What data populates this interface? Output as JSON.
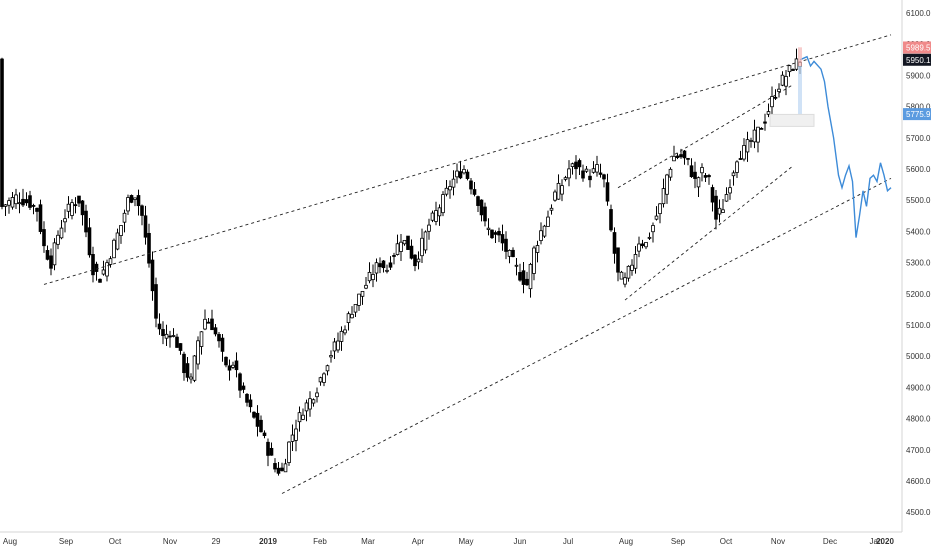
{
  "chart_data": {
    "type": "ohlc",
    "title": "",
    "xlabel": "",
    "ylabel": "",
    "ylim": [
      4450,
      6150
    ],
    "grid": false,
    "y_ticks": [
      "6100.0",
      "6000.0",
      "5900.0",
      "5800.0",
      "5700.0",
      "5600.0",
      "5500.0",
      "5400.0",
      "5300.0",
      "5200.0",
      "5100.0",
      "5000.0",
      "4900.0",
      "4800.0",
      "4700.0",
      "4600.0",
      "4500.0"
    ],
    "x_ticks": [
      "Aug",
      "Sep",
      "Oct",
      "Nov",
      "29",
      "2019",
      "Feb",
      "Mar",
      "Apr",
      "May",
      "Jun",
      "Jul",
      "Aug",
      "Sep",
      "Oct",
      "Nov",
      "Dec",
      "Jan",
      "2020"
    ],
    "price_tags": [
      {
        "label": "5989.5",
        "value": 5989.5,
        "color": "#f08a8a"
      },
      {
        "label": "5950.1",
        "value": 5950.1,
        "color": "#131722"
      },
      {
        "label": "5775.9",
        "value": 5775.9,
        "color": "#5b9be0"
      }
    ],
    "price_path": [
      [
        0,
        5480
      ],
      [
        2,
        5510
      ],
      [
        4,
        5490
      ],
      [
        5,
        5470
      ],
      [
        6,
        5350
      ],
      [
        7,
        5300
      ],
      [
        8,
        5390
      ],
      [
        9,
        5450
      ],
      [
        10,
        5490
      ],
      [
        11,
        5500
      ],
      [
        12,
        5400
      ],
      [
        13,
        5280
      ],
      [
        14,
        5250
      ],
      [
        15,
        5300
      ],
      [
        16,
        5360
      ],
      [
        17,
        5420
      ],
      [
        18,
        5500
      ],
      [
        19,
        5520
      ],
      [
        20,
        5450
      ],
      [
        21,
        5300
      ],
      [
        22,
        5120
      ],
      [
        23,
        5060
      ],
      [
        24,
        5080
      ],
      [
        25,
        5040
      ],
      [
        26,
        4960
      ],
      [
        27,
        4920
      ],
      [
        28,
        5050
      ],
      [
        29,
        5120
      ],
      [
        30,
        5100
      ],
      [
        31,
        5040
      ],
      [
        32,
        4960
      ],
      [
        33,
        4980
      ],
      [
        34,
        4900
      ],
      [
        35,
        4850
      ],
      [
        36,
        4800
      ],
      [
        37,
        4760
      ],
      [
        38,
        4700
      ],
      [
        39,
        4640
      ],
      [
        40,
        4630
      ],
      [
        41,
        4720
      ],
      [
        42,
        4780
      ],
      [
        43,
        4830
      ],
      [
        44,
        4860
      ],
      [
        45,
        4900
      ],
      [
        46,
        4960
      ],
      [
        47,
        5010
      ],
      [
        48,
        5050
      ],
      [
        49,
        5100
      ],
      [
        50,
        5150
      ],
      [
        51,
        5190
      ],
      [
        52,
        5230
      ],
      [
        53,
        5270
      ],
      [
        54,
        5300
      ],
      [
        55,
        5280
      ],
      [
        56,
        5330
      ],
      [
        57,
        5380
      ],
      [
        58,
        5350
      ],
      [
        59,
        5300
      ],
      [
        60,
        5360
      ],
      [
        61,
        5420
      ],
      [
        62,
        5460
      ],
      [
        63,
        5500
      ],
      [
        64,
        5550
      ],
      [
        65,
        5580
      ],
      [
        66,
        5600
      ],
      [
        67,
        5550
      ],
      [
        68,
        5500
      ],
      [
        69,
        5420
      ],
      [
        70,
        5390
      ],
      [
        71,
        5380
      ],
      [
        72,
        5340
      ],
      [
        73,
        5300
      ],
      [
        74,
        5260
      ],
      [
        75,
        5230
      ],
      [
        76,
        5340
      ],
      [
        77,
        5400
      ],
      [
        78,
        5450
      ],
      [
        79,
        5520
      ],
      [
        80,
        5550
      ],
      [
        81,
        5600
      ],
      [
        82,
        5610
      ],
      [
        83,
        5590
      ],
      [
        84,
        5580
      ],
      [
        85,
        5600
      ],
      [
        86,
        5560
      ],
      [
        87,
        5400
      ],
      [
        88,
        5260
      ],
      [
        89,
        5240
      ],
      [
        90,
        5300
      ],
      [
        91,
        5370
      ],
      [
        92,
        5360
      ],
      [
        93,
        5420
      ],
      [
        94,
        5480
      ],
      [
        95,
        5580
      ],
      [
        96,
        5640
      ],
      [
        97,
        5640
      ],
      [
        98,
        5620
      ],
      [
        99,
        5560
      ],
      [
        100,
        5590
      ],
      [
        101,
        5560
      ],
      [
        102,
        5440
      ],
      [
        103,
        5480
      ],
      [
        104,
        5560
      ],
      [
        105,
        5640
      ],
      [
        106,
        5660
      ],
      [
        107,
        5690
      ],
      [
        108,
        5720
      ],
      [
        109,
        5760
      ],
      [
        110,
        5820
      ],
      [
        111,
        5870
      ],
      [
        112,
        5900
      ],
      [
        113,
        5930
      ],
      [
        114,
        5950
      ]
    ],
    "projection_path": [
      [
        114,
        5950
      ],
      [
        115,
        5960
      ],
      [
        115.5,
        5930
      ],
      [
        116,
        5945
      ],
      [
        117,
        5920
      ],
      [
        117.5,
        5880
      ],
      [
        118,
        5800
      ],
      [
        118.8,
        5700
      ],
      [
        119.5,
        5580
      ],
      [
        120,
        5540
      ],
      [
        120.5,
        5580
      ],
      [
        121,
        5610
      ],
      [
        121.5,
        5560
      ],
      [
        122,
        5380
      ],
      [
        122.5,
        5450
      ],
      [
        123,
        5530
      ],
      [
        123.5,
        5480
      ],
      [
        124,
        5570
      ],
      [
        124.5,
        5580
      ],
      [
        125,
        5560
      ],
      [
        125.5,
        5620
      ],
      [
        126,
        5580
      ],
      [
        126.5,
        5530
      ],
      [
        127,
        5540
      ]
    ],
    "trend_lines": [
      {
        "from": [
          6,
          5230
        ],
        "to": [
          114,
          5960
        ],
        "extended_to": [
          127,
          6030
        ]
      },
      {
        "from": [
          40,
          4560
        ],
        "to": [
          126,
          5560
        ],
        "extended_to": [
          127,
          5570
        ]
      },
      {
        "from": [
          89,
          5180
        ],
        "to": [
          113,
          5610
        ]
      },
      {
        "from": [
          88,
          5540
        ],
        "to": [
          113,
          5870
        ]
      }
    ],
    "highlight": {
      "label": "",
      "x_from": 114,
      "x_to": 115,
      "y_from": 5760,
      "y_to": 5990
    }
  }
}
